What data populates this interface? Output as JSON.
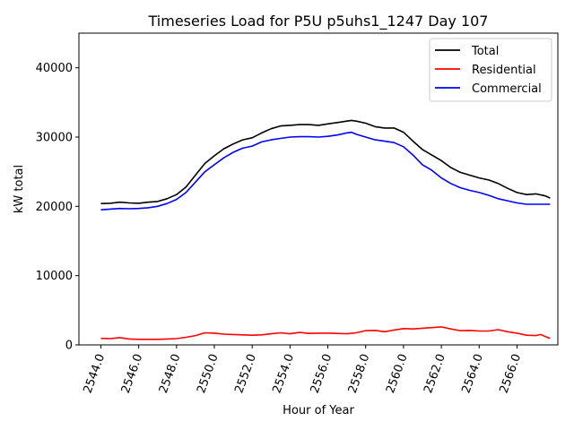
{
  "chart_data": {
    "type": "line",
    "title": "Timeseries Load for P5U p5uhs1_1247  Day 107",
    "xlabel": "Hour of Year",
    "ylabel": "kW total",
    "xlim": [
      2542.84,
      2568.16
    ],
    "ylim": [
      0,
      45000
    ],
    "xticks": [
      2544,
      2546,
      2548,
      2550,
      2552,
      2554,
      2556,
      2558,
      2560,
      2562,
      2564,
      2566
    ],
    "xtick_labels": [
      "2544.0",
      "2546.0",
      "2548.0",
      "2550.0",
      "2552.0",
      "2554.0",
      "2556.0",
      "2558.0",
      "2560.0",
      "2562.0",
      "2564.0",
      "2566.0"
    ],
    "yticks": [
      0,
      10000,
      20000,
      30000,
      40000
    ],
    "ytick_labels": [
      "0",
      "10000",
      "20000",
      "30000",
      "40000"
    ],
    "legend_position": "upper right",
    "series": [
      {
        "name": "Total",
        "color": "#000000",
        "x": [
          2544.0,
          2544.5,
          2545.0,
          2545.5,
          2546.0,
          2546.5,
          2547.0,
          2547.5,
          2548.0,
          2548.5,
          2549.0,
          2549.5,
          2550.0,
          2550.5,
          2551.0,
          2551.5,
          2552.0,
          2552.5,
          2553.0,
          2553.5,
          2554.0,
          2554.5,
          2555.0,
          2555.5,
          2556.0,
          2556.5,
          2557.0,
          2557.25,
          2557.5,
          2558.0,
          2558.5,
          2559.0,
          2559.5,
          2560.0,
          2560.5,
          2561.0,
          2561.5,
          2562.0,
          2562.5,
          2563.0,
          2563.5,
          2564.0,
          2564.5,
          2565.0,
          2565.5,
          2566.0,
          2566.5,
          2567.0,
          2567.5,
          2567.75
        ],
        "values": [
          20400,
          20450,
          20600,
          20500,
          20450,
          20600,
          20700,
          21100,
          21700,
          22800,
          24500,
          26200,
          27300,
          28300,
          29000,
          29600,
          29900,
          30600,
          31200,
          31600,
          31700,
          31800,
          31800,
          31700,
          31900,
          32100,
          32300,
          32400,
          32300,
          32000,
          31500,
          31300,
          31300,
          30700,
          29400,
          28200,
          27400,
          26600,
          25600,
          24900,
          24500,
          24100,
          23800,
          23300,
          22600,
          22000,
          21700,
          21800,
          21500,
          21200
        ]
      },
      {
        "name": "Residential",
        "color": "#ff0000",
        "x": [
          2544.0,
          2544.5,
          2545.0,
          2545.5,
          2546.0,
          2546.5,
          2547.0,
          2547.5,
          2548.0,
          2548.5,
          2549.0,
          2549.5,
          2550.0,
          2550.5,
          2551.0,
          2551.5,
          2552.0,
          2552.5,
          2553.0,
          2553.5,
          2554.0,
          2554.5,
          2555.0,
          2555.5,
          2556.0,
          2556.5,
          2557.0,
          2557.5,
          2558.0,
          2558.5,
          2559.0,
          2559.5,
          2560.0,
          2560.5,
          2561.0,
          2561.5,
          2562.0,
          2562.5,
          2563.0,
          2563.5,
          2564.0,
          2564.5,
          2565.0,
          2565.5,
          2566.0,
          2566.5,
          2567.0,
          2567.25,
          2567.5,
          2567.75
        ],
        "values": [
          950,
          900,
          1050,
          850,
          800,
          800,
          800,
          850,
          900,
          1100,
          1350,
          1750,
          1700,
          1550,
          1500,
          1450,
          1400,
          1450,
          1600,
          1750,
          1600,
          1800,
          1650,
          1700,
          1700,
          1650,
          1600,
          1750,
          2050,
          2100,
          1900,
          2150,
          2350,
          2300,
          2400,
          2500,
          2600,
          2300,
          2050,
          2100,
          2000,
          2000,
          2200,
          1900,
          1700,
          1400,
          1350,
          1500,
          1200,
          950
        ]
      },
      {
        "name": "Commercial",
        "color": "#0000ff",
        "x": [
          2544.0,
          2544.5,
          2545.0,
          2545.5,
          2546.0,
          2546.5,
          2547.0,
          2547.5,
          2548.0,
          2548.5,
          2549.0,
          2549.5,
          2550.0,
          2550.5,
          2551.0,
          2551.5,
          2552.0,
          2552.5,
          2553.0,
          2553.5,
          2554.0,
          2554.5,
          2555.0,
          2555.5,
          2556.0,
          2556.5,
          2557.0,
          2557.25,
          2557.5,
          2558.0,
          2558.5,
          2559.0,
          2559.5,
          2560.0,
          2560.5,
          2561.0,
          2561.5,
          2562.0,
          2562.5,
          2563.0,
          2563.5,
          2564.0,
          2564.5,
          2565.0,
          2565.5,
          2566.0,
          2566.5,
          2567.0,
          2567.5,
          2567.75
        ],
        "values": [
          19500,
          19600,
          19700,
          19650,
          19700,
          19800,
          20000,
          20400,
          21000,
          22000,
          23500,
          25000,
          26000,
          27000,
          27800,
          28400,
          28700,
          29300,
          29600,
          29800,
          30000,
          30050,
          30050,
          30000,
          30100,
          30300,
          30600,
          30700,
          30400,
          30000,
          29600,
          29400,
          29200,
          28600,
          27400,
          26000,
          25200,
          24100,
          23300,
          22700,
          22300,
          22000,
          21600,
          21100,
          20800,
          20500,
          20300,
          20300,
          20300,
          20300
        ]
      }
    ]
  }
}
